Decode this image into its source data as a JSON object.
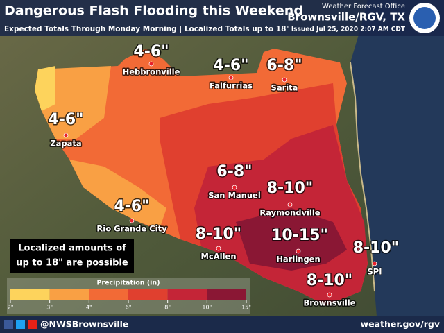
{
  "header": {
    "title": "Dangerous Flash Flooding this Weekend",
    "subtitle": "Expected Totals Through Monday Morning  |  Localized Totals up to 18\"",
    "issued": "Issued Jul 25, 2020 2:07 AM CDT",
    "office": "Weather Forecast Office",
    "location": "Brownsville/RGV, TX"
  },
  "places": [
    {
      "name": "Hebbronville",
      "amount": "4-6\""
    },
    {
      "name": "Falfurrias",
      "amount": "4-6\""
    },
    {
      "name": "Sarita",
      "amount": "6-8\""
    },
    {
      "name": "Zapata",
      "amount": "4-6\""
    },
    {
      "name": "San Manuel",
      "amount": "6-8\""
    },
    {
      "name": "Raymondville",
      "amount": "8-10\""
    },
    {
      "name": "Rio Grande City",
      "amount": "4-6\""
    },
    {
      "name": "McAllen",
      "amount": "8-10\""
    },
    {
      "name": "Harlingen",
      "amount": "10-15\""
    },
    {
      "name": "SPI",
      "amount": "8-10\""
    },
    {
      "name": "Brownsville",
      "amount": "8-10\""
    }
  ],
  "callout": [
    "Localized amounts of",
    "up to 18\" are possible"
  ],
  "legend": {
    "title": "Precipitation (in)",
    "ticks": [
      "2\"",
      "3\"",
      "4\"",
      "6\"",
      "8\"",
      "10\"",
      "15\""
    ],
    "colors": [
      "#fdd35c",
      "#f9a044",
      "#f26a36",
      "#e0402f",
      "#c42537",
      "#8a1734"
    ]
  },
  "footer": {
    "social": "@NWSBrownsville",
    "url": "weather.gov/rgv"
  }
}
